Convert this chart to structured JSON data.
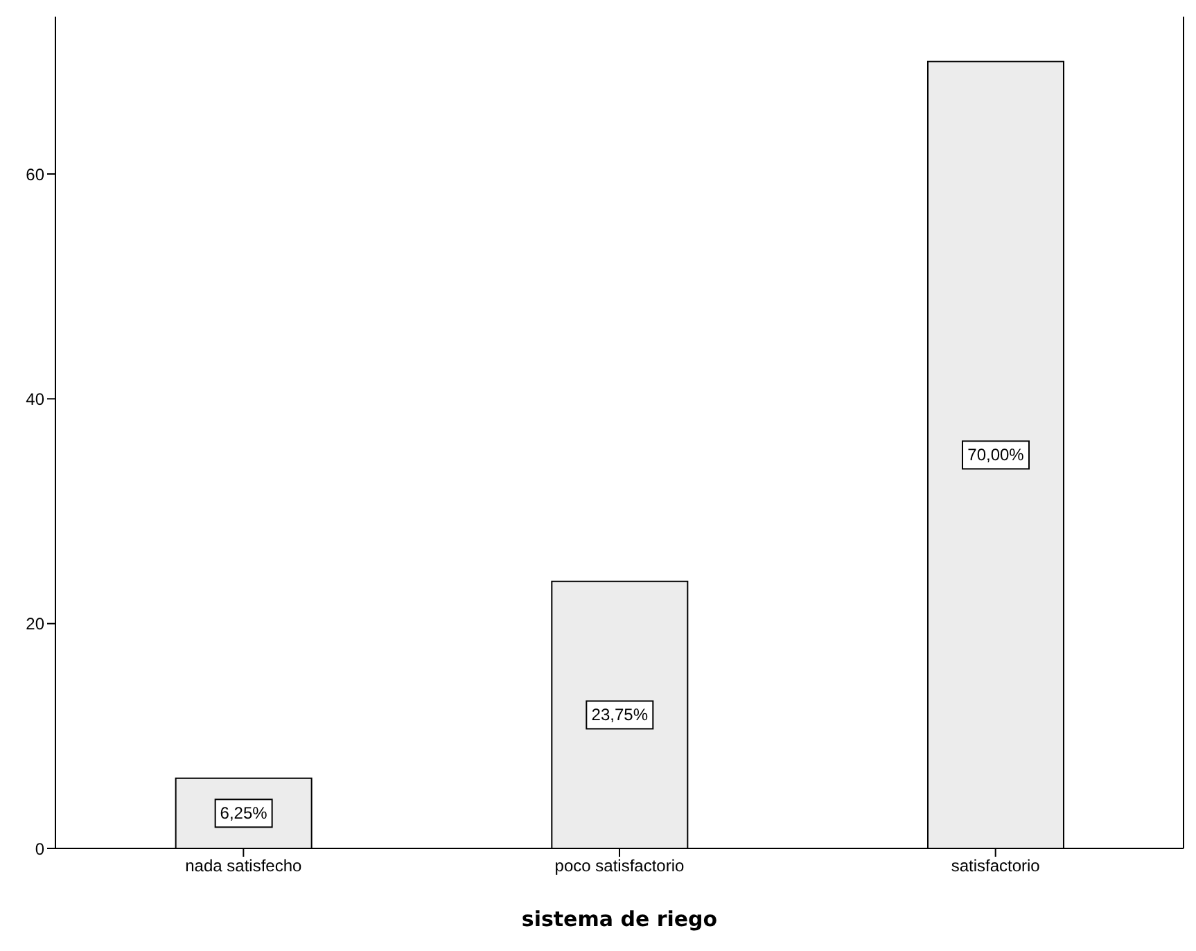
{
  "chart_data": {
    "type": "bar",
    "xlabel": "sistema de riego",
    "categories": [
      "nada satisfecho",
      "poco satisfactorio",
      "satisfactorio"
    ],
    "values": [
      6.25,
      23.75,
      70
    ],
    "value_labels": [
      "6,25%",
      "23,75%",
      "70,00%"
    ],
    "color": "#ececec",
    "ylim": [
      0,
      74
    ],
    "yticks": [
      0,
      20,
      40,
      60
    ],
    "grid": false
  }
}
